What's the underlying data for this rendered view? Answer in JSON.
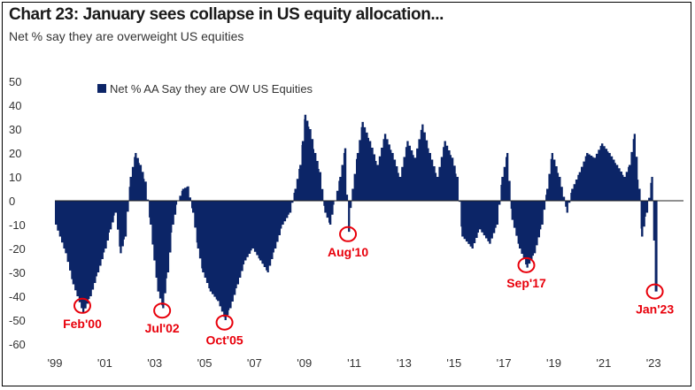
{
  "title": "Chart 23: January sees collapse in US equity allocation...",
  "subtitle": "Net % say they are overweight US equities",
  "colors": {
    "bar": "#0c2567",
    "annotation": "#e8000b"
  },
  "chart_data": {
    "type": "bar",
    "title": "Chart 23: January sees collapse in US equity allocation...",
    "subtitle": "Net % say they are overweight US equities",
    "legend": {
      "label": "Net % AA Say they are OW US Equities",
      "placement": "top-left"
    },
    "ylim": [
      -60,
      50
    ],
    "yticks": [
      50,
      40,
      30,
      20,
      10,
      0,
      -10,
      -20,
      -30,
      -40,
      -50,
      -60
    ],
    "xlim": [
      1999,
      2024.2
    ],
    "xticks": [
      {
        "x": 1999,
        "label": "'99"
      },
      {
        "x": 2001,
        "label": "'01"
      },
      {
        "x": 2003,
        "label": "'03"
      },
      {
        "x": 2005,
        "label": "'05"
      },
      {
        "x": 2007,
        "label": "'07"
      },
      {
        "x": 2009,
        "label": "'09"
      },
      {
        "x": 2011,
        "label": "'11"
      },
      {
        "x": 2013,
        "label": "'13"
      },
      {
        "x": 2015,
        "label": "'15"
      },
      {
        "x": 2017,
        "label": "'17"
      },
      {
        "x": 2019,
        "label": "'19"
      },
      {
        "x": 2021,
        "label": "'21"
      },
      {
        "x": 2023,
        "label": "'23"
      }
    ],
    "series": [
      {
        "name": "Net % AA Say they are OW US Equities",
        "points": [
          [
            1999.0,
            -10
          ],
          [
            1999.4,
            -22
          ],
          [
            1999.7,
            -35
          ],
          [
            2000.1,
            -47
          ],
          [
            2000.4,
            -40
          ],
          [
            2000.7,
            -30
          ],
          [
            2001.0,
            -20
          ],
          [
            2001.2,
            -12
          ],
          [
            2001.4,
            -5
          ],
          [
            2001.6,
            -22
          ],
          [
            2001.8,
            -15
          ],
          [
            2002.0,
            10
          ],
          [
            2002.2,
            20
          ],
          [
            2002.4,
            15
          ],
          [
            2002.6,
            8
          ],
          [
            2002.8,
            -10
          ],
          [
            2002.95,
            -25
          ],
          [
            2003.1,
            -38
          ],
          [
            2003.3,
            -45
          ],
          [
            2003.5,
            -30
          ],
          [
            2003.7,
            -10
          ],
          [
            2003.9,
            0
          ],
          [
            2004.1,
            5
          ],
          [
            2004.3,
            6
          ],
          [
            2004.5,
            -5
          ],
          [
            2004.7,
            -20
          ],
          [
            2004.9,
            -30
          ],
          [
            2005.2,
            -38
          ],
          [
            2005.5,
            -42
          ],
          [
            2005.8,
            -50
          ],
          [
            2006.0,
            -45
          ],
          [
            2006.3,
            -35
          ],
          [
            2006.6,
            -25
          ],
          [
            2006.9,
            -20
          ],
          [
            2007.2,
            -25
          ],
          [
            2007.5,
            -30
          ],
          [
            2007.8,
            -20
          ],
          [
            2008.1,
            -10
          ],
          [
            2008.4,
            -5
          ],
          [
            2008.6,
            5
          ],
          [
            2008.8,
            15
          ],
          [
            2008.9,
            25
          ],
          [
            2009.0,
            36
          ],
          [
            2009.2,
            30
          ],
          [
            2009.4,
            20
          ],
          [
            2009.6,
            12
          ],
          [
            2009.8,
            -5
          ],
          [
            2010.0,
            -10
          ],
          [
            2010.2,
            0
          ],
          [
            2010.4,
            10
          ],
          [
            2010.6,
            22
          ],
          [
            2010.75,
            -13
          ],
          [
            2010.9,
            5
          ],
          [
            2011.1,
            20
          ],
          [
            2011.3,
            33
          ],
          [
            2011.6,
            25
          ],
          [
            2011.9,
            15
          ],
          [
            2012.2,
            28
          ],
          [
            2012.5,
            20
          ],
          [
            2012.8,
            10
          ],
          [
            2013.1,
            25
          ],
          [
            2013.4,
            18
          ],
          [
            2013.7,
            32
          ],
          [
            2014.0,
            20
          ],
          [
            2014.3,
            10
          ],
          [
            2014.6,
            25
          ],
          [
            2014.9,
            18
          ],
          [
            2015.1,
            10
          ],
          [
            2015.3,
            -15
          ],
          [
            2015.7,
            -20
          ],
          [
            2016.0,
            -12
          ],
          [
            2016.4,
            -18
          ],
          [
            2016.7,
            -10
          ],
          [
            2016.9,
            10
          ],
          [
            2017.1,
            20
          ],
          [
            2017.3,
            -8
          ],
          [
            2017.6,
            -20
          ],
          [
            2017.9,
            -28
          ],
          [
            2018.2,
            -22
          ],
          [
            2018.5,
            -10
          ],
          [
            2018.7,
            5
          ],
          [
            2018.9,
            20
          ],
          [
            2019.2,
            10
          ],
          [
            2019.5,
            -5
          ],
          [
            2019.7,
            5
          ],
          [
            2020.0,
            12
          ],
          [
            2020.3,
            20
          ],
          [
            2020.6,
            18
          ],
          [
            2020.9,
            24
          ],
          [
            2021.2,
            20
          ],
          [
            2021.5,
            15
          ],
          [
            2021.8,
            10
          ],
          [
            2022.0,
            15
          ],
          [
            2022.2,
            28
          ],
          [
            2022.4,
            5
          ],
          [
            2022.5,
            -15
          ],
          [
            2022.7,
            -5
          ],
          [
            2022.9,
            10
          ],
          [
            2023.05,
            -38
          ]
        ]
      }
    ],
    "annotations": [
      {
        "label": "Feb'00",
        "x": 2000.1,
        "y": -44
      },
      {
        "label": "Jul'02",
        "x": 2003.3,
        "y": -46
      },
      {
        "label": "Oct'05",
        "x": 2005.8,
        "y": -51
      },
      {
        "label": "Aug'10",
        "x": 2010.75,
        "y": -14
      },
      {
        "label": "Sep'17",
        "x": 2017.9,
        "y": -27
      },
      {
        "label": "Jan'23",
        "x": 2023.05,
        "y": -38
      }
    ]
  }
}
